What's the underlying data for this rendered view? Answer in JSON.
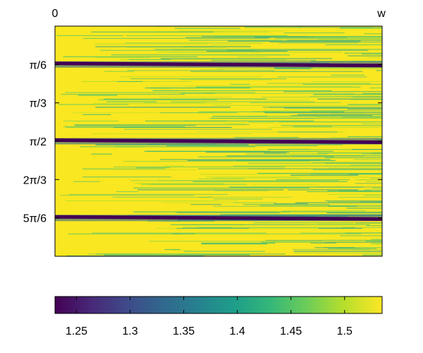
{
  "chart_data": {
    "type": "heatmap",
    "title": "",
    "xlabel": "",
    "ylabel": "",
    "x_ticks": [
      "0",
      "w"
    ],
    "y_ticks": [
      "π/6",
      "π/3",
      "π/2",
      "2π/3",
      "5π/6"
    ],
    "y_tick_values": [
      0.5236,
      1.0472,
      1.5708,
      2.0944,
      2.618
    ],
    "ylim": [
      0,
      3.1416
    ],
    "colorbar": {
      "colormap": "viridis",
      "range": [
        1.23,
        1.535
      ],
      "tick_values": [
        1.25,
        1.3,
        1.35,
        1.4,
        1.45,
        1.5
      ],
      "tick_labels": [
        "1.25",
        "1.3",
        "1.35",
        "1.4",
        "1.45",
        "1.5"
      ]
    },
    "dominant_value": 1.53,
    "dark_bands": [
      {
        "y": 0.5236,
        "value": 1.23
      },
      {
        "y": 1.5708,
        "value": 1.23
      },
      {
        "y": 2.618,
        "value": 1.23
      }
    ],
    "grid": false
  },
  "colors": {
    "high": "#f9e721",
    "mid": "#35b779",
    "low": "#440154"
  }
}
